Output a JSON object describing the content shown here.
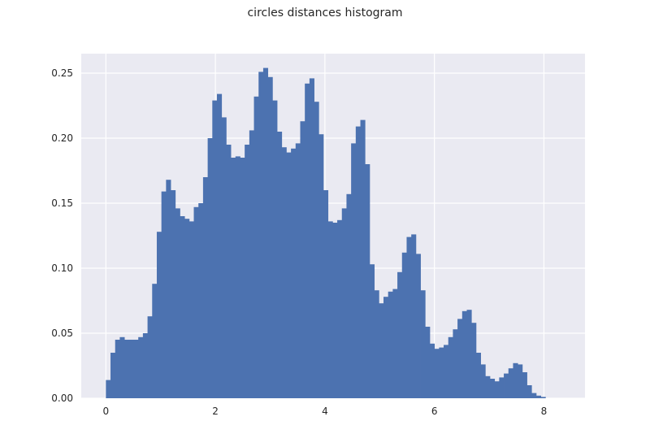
{
  "chart_data": {
    "type": "bar",
    "title": "circles distances histogram",
    "xlabel": "",
    "ylabel": "",
    "xlim": [
      -0.45,
      8.75
    ],
    "ylim": [
      0,
      0.265
    ],
    "xticks": [
      "0",
      "2",
      "4",
      "6",
      "8"
    ],
    "xtick_values": [
      0,
      2,
      4,
      6,
      8
    ],
    "yticks": [
      "0.00",
      "0.05",
      "0.10",
      "0.15",
      "0.20",
      "0.25"
    ],
    "ytick_values": [
      0,
      0.05,
      0.1,
      0.15,
      0.2,
      0.25
    ],
    "grid": true,
    "bar_color": "#4c72b0",
    "background_color": "#eaeaf2",
    "bin_start": 0.0,
    "bin_width": 0.0845,
    "values": [
      0.014,
      0.035,
      0.045,
      0.047,
      0.045,
      0.045,
      0.045,
      0.047,
      0.05,
      0.063,
      0.088,
      0.128,
      0.159,
      0.168,
      0.16,
      0.146,
      0.14,
      0.138,
      0.136,
      0.147,
      0.15,
      0.17,
      0.2,
      0.229,
      0.234,
      0.216,
      0.195,
      0.185,
      0.186,
      0.185,
      0.195,
      0.206,
      0.232,
      0.251,
      0.254,
      0.247,
      0.229,
      0.205,
      0.193,
      0.189,
      0.192,
      0.196,
      0.213,
      0.242,
      0.246,
      0.228,
      0.203,
      0.16,
      0.136,
      0.135,
      0.137,
      0.146,
      0.157,
      0.196,
      0.209,
      0.214,
      0.18,
      0.103,
      0.083,
      0.073,
      0.078,
      0.082,
      0.084,
      0.097,
      0.112,
      0.124,
      0.126,
      0.111,
      0.083,
      0.055,
      0.042,
      0.038,
      0.039,
      0.041,
      0.047,
      0.053,
      0.061,
      0.067,
      0.068,
      0.058,
      0.035,
      0.026,
      0.017,
      0.015,
      0.013,
      0.016,
      0.019,
      0.023,
      0.027,
      0.026,
      0.02,
      0.01,
      0.004,
      0.002,
      0.001
    ]
  }
}
